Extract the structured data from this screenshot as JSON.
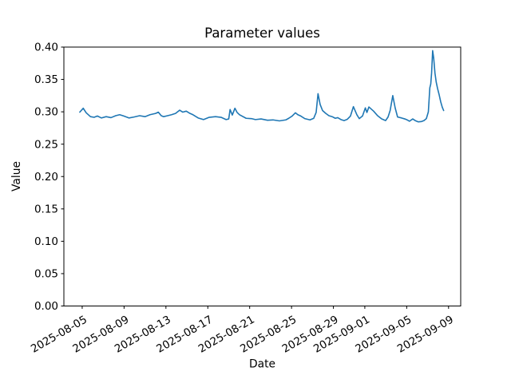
{
  "figure": {
    "background": "#ffffff",
    "spine_color": "#000000",
    "text_color": "#000000"
  },
  "chart_data": {
    "type": "line",
    "title": "Parameter values",
    "xlabel": "Date",
    "ylabel": "Value",
    "grid": false,
    "legend_position": "none",
    "line_color": "#1f77b4",
    "x_epoch": "2025-08-05",
    "xlim_days": [
      -1.75,
      36.16
    ],
    "ylim": [
      0.0,
      0.4
    ],
    "xticks": [
      {
        "day": 0,
        "label": "2025-08-05"
      },
      {
        "day": 4,
        "label": "2025-08-09"
      },
      {
        "day": 8,
        "label": "2025-08-13"
      },
      {
        "day": 12,
        "label": "2025-08-17"
      },
      {
        "day": 16,
        "label": "2025-08-21"
      },
      {
        "day": 20,
        "label": "2025-08-25"
      },
      {
        "day": 24,
        "label": "2025-08-29"
      },
      {
        "day": 27,
        "label": "2025-09-01"
      },
      {
        "day": 31,
        "label": "2025-09-05"
      },
      {
        "day": 35,
        "label": "2025-09-09"
      }
    ],
    "yticks": [
      {
        "value": 0.0,
        "label": "0.00"
      },
      {
        "value": 0.05,
        "label": "0.05"
      },
      {
        "value": 0.1,
        "label": "0.10"
      },
      {
        "value": 0.15,
        "label": "0.15"
      },
      {
        "value": 0.2,
        "label": "0.20"
      },
      {
        "value": 0.25,
        "label": "0.25"
      },
      {
        "value": 0.3,
        "label": "0.30"
      },
      {
        "value": 0.35,
        "label": "0.35"
      },
      {
        "value": 0.4,
        "label": "0.40"
      }
    ],
    "series": [
      {
        "points": [
          [
            -0.23,
            0.2995
          ],
          [
            0.1,
            0.3055
          ],
          [
            0.38,
            0.2985
          ],
          [
            0.79,
            0.2925
          ],
          [
            1.14,
            0.2915
          ],
          [
            1.45,
            0.2935
          ],
          [
            1.83,
            0.2905
          ],
          [
            2.29,
            0.2925
          ],
          [
            2.75,
            0.291
          ],
          [
            3.2,
            0.294
          ],
          [
            3.58,
            0.2955
          ],
          [
            3.97,
            0.2935
          ],
          [
            4.48,
            0.2905
          ],
          [
            4.96,
            0.292
          ],
          [
            5.49,
            0.294
          ],
          [
            6.0,
            0.2925
          ],
          [
            6.48,
            0.2955
          ],
          [
            7.02,
            0.2975
          ],
          [
            7.27,
            0.2995
          ],
          [
            7.55,
            0.294
          ],
          [
            7.78,
            0.2925
          ],
          [
            8.16,
            0.294
          ],
          [
            8.54,
            0.2955
          ],
          [
            8.92,
            0.2975
          ],
          [
            9.31,
            0.3025
          ],
          [
            9.61,
            0.2995
          ],
          [
            9.94,
            0.301
          ],
          [
            10.3,
            0.2975
          ],
          [
            10.58,
            0.2955
          ],
          [
            11.08,
            0.2905
          ],
          [
            11.59,
            0.288
          ],
          [
            12.13,
            0.2915
          ],
          [
            12.74,
            0.2925
          ],
          [
            13.27,
            0.2915
          ],
          [
            13.75,
            0.288
          ],
          [
            14.0,
            0.289
          ],
          [
            14.13,
            0.3035
          ],
          [
            14.34,
            0.295
          ],
          [
            14.59,
            0.3055
          ],
          [
            14.8,
            0.299
          ],
          [
            15.03,
            0.2955
          ],
          [
            15.66,
            0.29
          ],
          [
            16.17,
            0.2895
          ],
          [
            16.55,
            0.288
          ],
          [
            17.09,
            0.289
          ],
          [
            17.7,
            0.287
          ],
          [
            18.23,
            0.2875
          ],
          [
            18.84,
            0.286
          ],
          [
            19.45,
            0.2875
          ],
          [
            19.73,
            0.29
          ],
          [
            20.06,
            0.2935
          ],
          [
            20.37,
            0.2985
          ],
          [
            20.6,
            0.2955
          ],
          [
            20.88,
            0.2935
          ],
          [
            21.26,
            0.2895
          ],
          [
            21.76,
            0.2875
          ],
          [
            22.12,
            0.29
          ],
          [
            22.35,
            0.299
          ],
          [
            22.53,
            0.328
          ],
          [
            22.73,
            0.3115
          ],
          [
            22.96,
            0.302
          ],
          [
            23.27,
            0.2975
          ],
          [
            23.57,
            0.294
          ],
          [
            23.88,
            0.2925
          ],
          [
            24.18,
            0.29
          ],
          [
            24.41,
            0.291
          ],
          [
            24.72,
            0.288
          ],
          [
            25.02,
            0.2865
          ],
          [
            25.33,
            0.2885
          ],
          [
            25.63,
            0.2935
          ],
          [
            25.91,
            0.308
          ],
          [
            26.24,
            0.2955
          ],
          [
            26.47,
            0.2895
          ],
          [
            26.78,
            0.2935
          ],
          [
            27.05,
            0.306
          ],
          [
            27.2,
            0.299
          ],
          [
            27.39,
            0.3075
          ],
          [
            27.84,
            0.301
          ],
          [
            28.22,
            0.294
          ],
          [
            28.61,
            0.289
          ],
          [
            28.99,
            0.2865
          ],
          [
            29.22,
            0.292
          ],
          [
            29.42,
            0.302
          ],
          [
            29.67,
            0.325
          ],
          [
            29.9,
            0.306
          ],
          [
            30.13,
            0.292
          ],
          [
            30.51,
            0.2905
          ],
          [
            30.82,
            0.289
          ],
          [
            31.05,
            0.2875
          ],
          [
            31.27,
            0.2855
          ],
          [
            31.58,
            0.289
          ],
          [
            31.81,
            0.2865
          ],
          [
            32.11,
            0.2845
          ],
          [
            32.42,
            0.285
          ],
          [
            32.65,
            0.2865
          ],
          [
            32.88,
            0.2895
          ],
          [
            33.07,
            0.3
          ],
          [
            33.21,
            0.337
          ],
          [
            33.3,
            0.343
          ],
          [
            33.38,
            0.36
          ],
          [
            33.48,
            0.3945
          ],
          [
            33.58,
            0.383
          ],
          [
            33.7,
            0.36
          ],
          [
            33.82,
            0.346
          ],
          [
            33.95,
            0.336
          ],
          [
            34.1,
            0.3265
          ],
          [
            34.25,
            0.3155
          ],
          [
            34.4,
            0.307
          ],
          [
            34.53,
            0.302
          ]
        ]
      }
    ]
  }
}
